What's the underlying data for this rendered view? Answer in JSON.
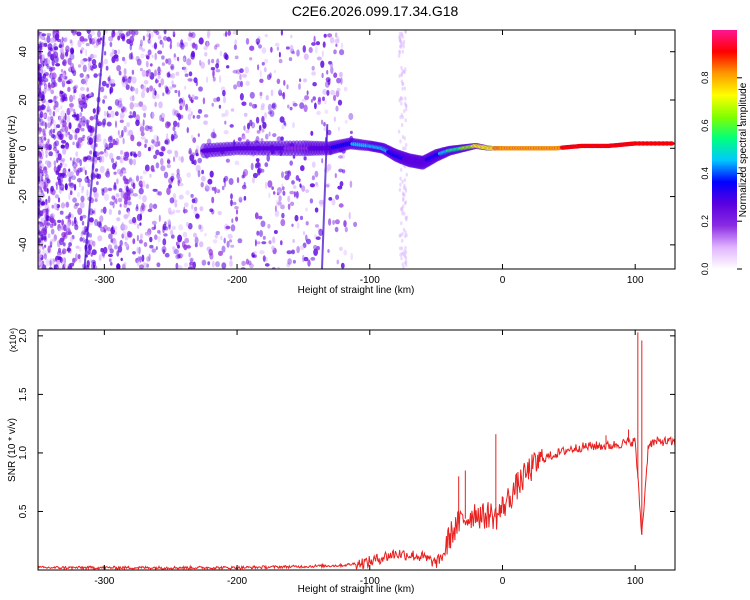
{
  "figure": {
    "title": "C2E6.2026.099.17.34.G18"
  },
  "chart_data": [
    {
      "type": "heatmap",
      "xlabel": "Height of straight line (km)",
      "ylabel": "Frequency (Hz)",
      "xlim": [
        -350,
        130
      ],
      "ylim": [
        -50,
        49
      ],
      "xticks": [
        -300,
        -200,
        -100,
        0,
        100
      ],
      "yticks": [
        -40,
        -20,
        0,
        20,
        40
      ],
      "colorbar": {
        "label": "Normalized spectral amplitude",
        "range": [
          0,
          1
        ],
        "ticks": [
          "0.0",
          "0.2",
          "0.4",
          "0.6",
          "0.8"
        ],
        "colors": [
          "#ffffff",
          "#e0b4ff",
          "#8a2be2",
          "#5a00e0",
          "#0000ff",
          "#00c8ff",
          "#00ff7f",
          "#80ff00",
          "#ffff00",
          "#ff9900",
          "#ff0000",
          "#ff1493"
        ]
      },
      "ridge": {
        "x": [
          -225,
          -200,
          -175,
          -150,
          -130,
          -115,
          -100,
          -90,
          -80,
          -70,
          -60,
          -50,
          -40,
          -30,
          -20,
          -10,
          0,
          20,
          40,
          60,
          80,
          100,
          130
        ],
        "y": [
          -1,
          0,
          0,
          0,
          0,
          2,
          1,
          0,
          -3,
          -5,
          -6,
          -3,
          -1,
          0,
          1,
          0,
          0,
          0,
          0,
          1,
          1,
          2,
          2
        ],
        "amplitude": [
          0.25,
          0.3,
          0.25,
          0.2,
          0.3,
          0.4,
          0.45,
          0.45,
          0.35,
          0.3,
          0.3,
          0.35,
          0.5,
          0.6,
          0.7,
          0.75,
          0.8,
          0.85,
          0.85,
          0.9,
          0.95,
          0.9,
          0.95
        ]
      }
    },
    {
      "type": "line",
      "xlabel": "Height of straight line (km)",
      "ylabel": "SNR (10 * v/v)",
      "y_multiplier": "(x10⁴)",
      "xlim": [
        -350,
        130
      ],
      "ylim": [
        0,
        2.05
      ],
      "xticks": [
        -300,
        -200,
        -100,
        0,
        100
      ],
      "yticks": [
        0.5,
        1.0,
        1.5,
        2.0
      ],
      "series": [
        {
          "color": "#e8201e",
          "x": [
            -350,
            -300,
            -250,
            -200,
            -150,
            -120,
            -100,
            -90,
            -80,
            -70,
            -60,
            -50,
            -45,
            -40,
            -35,
            -30,
            -25,
            -20,
            -15,
            -10,
            -5,
            0,
            10,
            20,
            30,
            40,
            50,
            60,
            70,
            80,
            90,
            100,
            105,
            110,
            120,
            130
          ],
          "y": [
            0.02,
            0.02,
            0.02,
            0.02,
            0.03,
            0.04,
            0.07,
            0.11,
            0.14,
            0.13,
            0.11,
            0.06,
            0.12,
            0.28,
            0.37,
            0.43,
            0.45,
            0.5,
            0.45,
            0.48,
            0.45,
            0.53,
            0.7,
            0.85,
            0.95,
            0.99,
            1.03,
            1.05,
            1.06,
            1.06,
            1.08,
            1.1,
            0.3,
            1.08,
            1.1,
            1.09
          ]
        }
      ],
      "spikes": [
        {
          "x": -33,
          "y": 0.8
        },
        {
          "x": -28,
          "y": 0.85
        },
        {
          "x": -5,
          "y": 1.16
        },
        {
          "x": 78,
          "y": 1.15
        },
        {
          "x": 95,
          "y": 1.2
        },
        {
          "x": 102,
          "y": 2.03
        },
        {
          "x": 105,
          "y": 1.96
        }
      ]
    }
  ]
}
